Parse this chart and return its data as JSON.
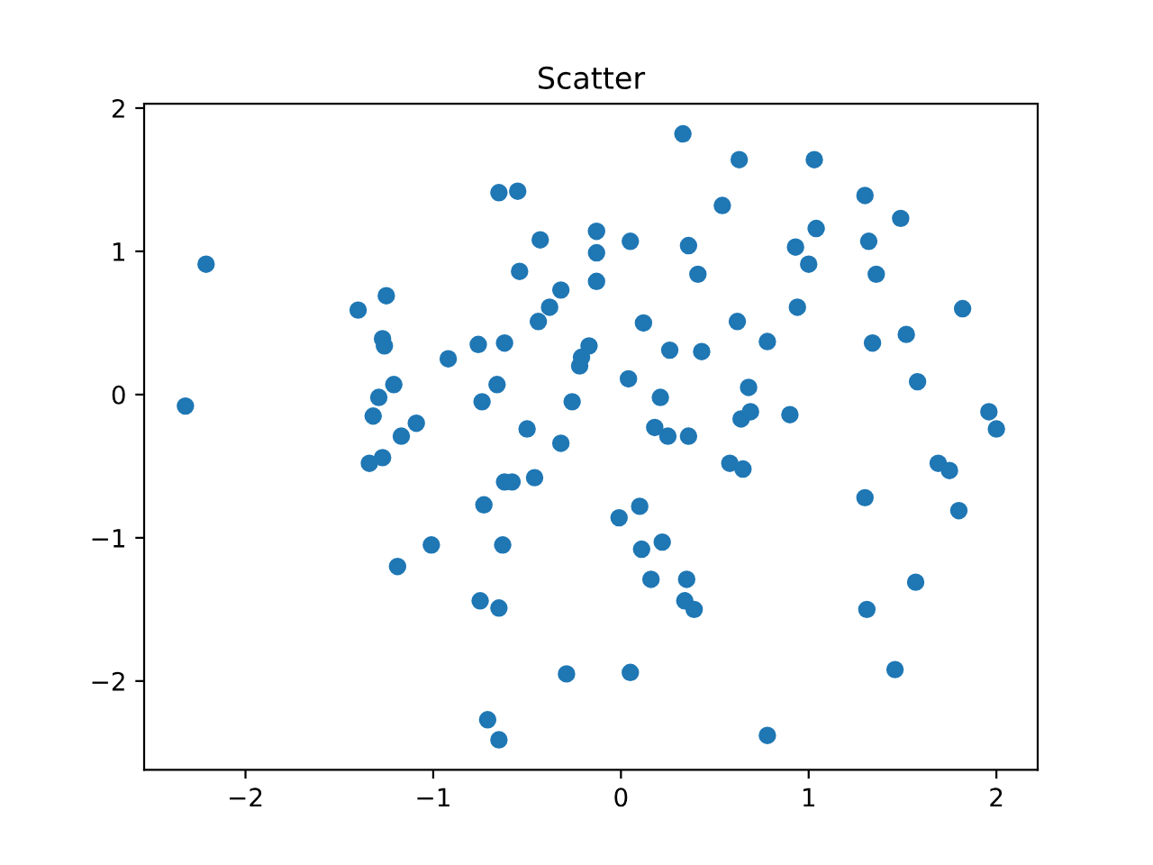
{
  "chart_data": {
    "type": "scatter",
    "title": "Scatter",
    "x": [
      -2.32,
      -2.21,
      -1.4,
      -1.25,
      -1.27,
      -1.26,
      -0.92,
      -0.76,
      -0.62,
      -1.21,
      -1.29,
      -1.32,
      -1.17,
      -1.09,
      -0.74,
      -0.66,
      -0.5,
      -0.26,
      -0.21,
      -0.22,
      -0.17,
      -0.32,
      -0.65,
      -0.55,
      -0.43,
      -0.54,
      -0.32,
      -0.38,
      -0.44,
      -0.13,
      -0.13,
      -0.13,
      0.33,
      0.63,
      1.03,
      0.54,
      1.3,
      1.49,
      1.04,
      1.32,
      0.05,
      0.36,
      0.93,
      1.0,
      1.36,
      0.41,
      1.82,
      0.94,
      0.12,
      0.62,
      0.78,
      1.52,
      1.34,
      0.26,
      0.43,
      0.04,
      0.21,
      0.68,
      1.58,
      0.69,
      0.64,
      0.9,
      1.96,
      2.0,
      0.18,
      0.25,
      0.36,
      -1.34,
      -1.27,
      -0.62,
      -0.58,
      -0.46,
      -0.73,
      -1.01,
      -0.63,
      -1.19,
      -0.75,
      -0.65,
      -0.29,
      -0.71,
      -0.65,
      0.58,
      0.65,
      1.69,
      1.75,
      1.3,
      1.8,
      -0.01,
      0.1,
      0.11,
      0.22,
      0.16,
      0.35,
      0.34,
      0.39,
      1.57,
      1.31,
      1.46,
      0.05,
      0.78
    ],
    "values": [
      -0.08,
      0.91,
      0.59,
      0.69,
      0.39,
      0.34,
      0.25,
      0.35,
      0.36,
      0.07,
      -0.02,
      -0.15,
      -0.29,
      -0.2,
      -0.05,
      0.07,
      -0.24,
      -0.05,
      0.26,
      0.2,
      0.34,
      -0.34,
      1.41,
      1.42,
      1.08,
      0.86,
      0.73,
      0.61,
      0.51,
      1.14,
      0.99,
      0.79,
      1.82,
      1.64,
      1.64,
      1.32,
      1.39,
      1.23,
      1.16,
      1.07,
      1.07,
      1.04,
      1.03,
      0.91,
      0.84,
      0.84,
      0.6,
      0.61,
      0.5,
      0.51,
      0.37,
      0.42,
      0.36,
      0.31,
      0.3,
      0.11,
      -0.02,
      0.05,
      0.09,
      -0.12,
      -0.17,
      -0.14,
      -0.12,
      -0.24,
      -0.23,
      -0.29,
      -0.29,
      -0.48,
      -0.44,
      -0.61,
      -0.61,
      -0.58,
      -0.77,
      -1.05,
      -1.05,
      -1.2,
      -1.44,
      -1.49,
      -1.95,
      -2.27,
      -2.41,
      -0.48,
      -0.52,
      -0.48,
      -0.53,
      -0.72,
      -0.81,
      -0.86,
      -0.78,
      -1.08,
      -1.03,
      -1.29,
      -1.29,
      -1.44,
      -1.5,
      -1.31,
      -1.5,
      -1.92,
      -1.94,
      -2.38
    ],
    "color": "#1f77b4",
    "marker": "circle",
    "xlim": [
      -2.54,
      2.22
    ],
    "xticks": [
      {
        "value": -2,
        "label": "−2"
      },
      {
        "value": -1,
        "label": "−1"
      },
      0,
      1,
      2
    ],
    "ylim": [
      -2.62,
      2.03
    ],
    "yticks": [
      {
        "value": -2,
        "label": "−2"
      },
      {
        "value": -1,
        "label": "−1"
      },
      0,
      1,
      2
    ],
    "grid": false,
    "legend": false
  }
}
